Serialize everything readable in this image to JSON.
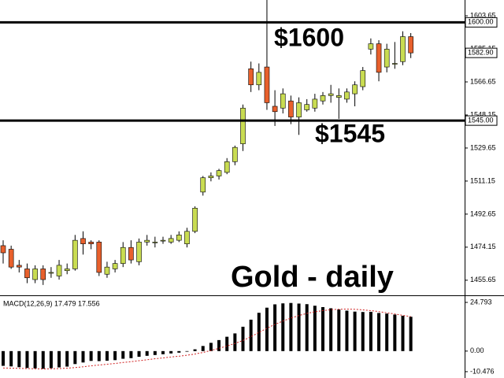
{
  "chart_data": [
    {
      "type": "candlestick",
      "open": [
        1475,
        1473,
        1464,
        1462,
        1456,
        1462,
        1460,
        1458,
        1461,
        1462,
        1479,
        1477,
        1477,
        1459,
        1462,
        1465,
        1474,
        1466,
        1477,
        1477,
        1478,
        1477,
        1478,
        1476,
        1483,
        1505,
        1513,
        1514,
        1516,
        1522,
        1532,
        1574,
        1565,
        1575,
        1553,
        1552,
        1556,
        1547,
        1551,
        1552,
        1556,
        1559,
        1558,
        1557,
        1560,
        1564,
        1585,
        1588,
        1575,
        1577,
        1578,
        1592
      ],
      "high": [
        1478,
        1475,
        1467,
        1465,
        1464,
        1464,
        1463,
        1467,
        1465,
        1481,
        1483,
        1478,
        1478,
        1466,
        1467,
        1477,
        1478,
        1479,
        1481,
        1480,
        1480,
        1481,
        1483,
        1485,
        1497,
        1514,
        1516,
        1518,
        1524,
        1531,
        1554,
        1578,
        1577,
        1613,
        1562,
        1563,
        1559,
        1558,
        1557,
        1560,
        1561,
        1565,
        1563,
        1563,
        1567,
        1575,
        1591,
        1590,
        1588,
        1589,
        1595,
        1594
      ],
      "low": [
        1465,
        1462,
        1460,
        1454,
        1454,
        1453,
        1457,
        1456,
        1459,
        1461,
        1470,
        1473,
        1458,
        1457,
        1460,
        1463,
        1465,
        1464,
        1475,
        1474,
        1476,
        1476,
        1477,
        1474,
        1482,
        1503,
        1511,
        1512,
        1515,
        1520,
        1528,
        1561,
        1562,
        1551,
        1542,
        1549,
        1543,
        1537,
        1550,
        1550,
        1554,
        1555,
        1546,
        1555,
        1553,
        1562,
        1582,
        1567,
        1572,
        1574,
        1576,
        1580
      ],
      "close": [
        1471,
        1463,
        1463,
        1457,
        1462,
        1456,
        1460,
        1464,
        1462,
        1478,
        1476,
        1476,
        1460,
        1463,
        1465,
        1474,
        1467,
        1477,
        1478,
        1477,
        1478,
        1479,
        1481,
        1483,
        1496,
        1513,
        1514,
        1517,
        1522,
        1530,
        1552,
        1565,
        1572,
        1555,
        1550,
        1560,
        1547,
        1555,
        1554,
        1557,
        1559,
        1560,
        1559,
        1561,
        1565,
        1573,
        1588,
        1572,
        1585,
        1577,
        1592,
        1582.9
      ],
      "up_color": "#c9dc52",
      "down_color": "#e8602c",
      "ylim": [
        1447.2,
        1612.5
      ],
      "yticks": [
        1455.65,
        1474.15,
        1492.65,
        1511.15,
        1529.65,
        1548.15,
        1566.65,
        1585.15,
        1603.65
      ],
      "levels": [
        {
          "value": 1600,
          "label": "1600.00"
        },
        {
          "value": 1545,
          "label": "1545.00"
        }
      ],
      "current_price": {
        "value": 1582.9,
        "label": "1582.90"
      },
      "annotations": [
        "$1600",
        "$1545",
        "Gold - daily"
      ]
    },
    {
      "type": "bar",
      "title": "MACD(12,26,9) 17.479 17.556",
      "ylim": [
        -12.9,
        27.6
      ],
      "yticks": [
        24.793,
        {
          "value": 0,
          "label": "0.00"
        },
        -10.476
      ],
      "series": [
        {
          "type": "bar",
          "color": "#000000",
          "values": [
            -7.5,
            -7.8,
            -8.2,
            -8.6,
            -8.8,
            -9.0,
            -8.7,
            -8.3,
            -7.9,
            -6.6,
            -5.8,
            -5.0,
            -5.1,
            -4.9,
            -4.6,
            -3.9,
            -3.6,
            -2.9,
            -2.4,
            -2.0,
            -1.6,
            -1.2,
            -0.8,
            -0.3,
            0.9,
            2.6,
            4.2,
            5.6,
            7.3,
            9.0,
            12.4,
            16.0,
            19.5,
            22.1,
            23.8,
            24.3,
            24.5,
            24.2,
            23.9,
            23.1,
            22.4,
            21.8,
            21.2,
            20.6,
            20.1,
            19.9,
            20.0,
            19.4,
            19.1,
            18.6,
            18.0,
            17.479
          ]
        },
        {
          "type": "line",
          "color": "#d02020",
          "values": [
            -8.6,
            -8.7,
            -8.8,
            -8.9,
            -9.0,
            -9.1,
            -9.0,
            -8.9,
            -8.7,
            -8.4,
            -8.0,
            -7.5,
            -7.1,
            -6.7,
            -6.3,
            -5.8,
            -5.4,
            -4.9,
            -4.4,
            -3.9,
            -3.5,
            -3.0,
            -2.6,
            -2.1,
            -1.5,
            -0.7,
            0.3,
            1.4,
            2.6,
            3.9,
            5.4,
            7.3,
            9.5,
            11.6,
            13.6,
            15.3,
            16.8,
            18.1,
            19.2,
            20.0,
            20.6,
            21.1,
            21.3,
            21.4,
            21.3,
            21.0,
            20.6,
            20.1,
            19.5,
            18.9,
            18.2,
            17.556
          ]
        }
      ]
    }
  ]
}
